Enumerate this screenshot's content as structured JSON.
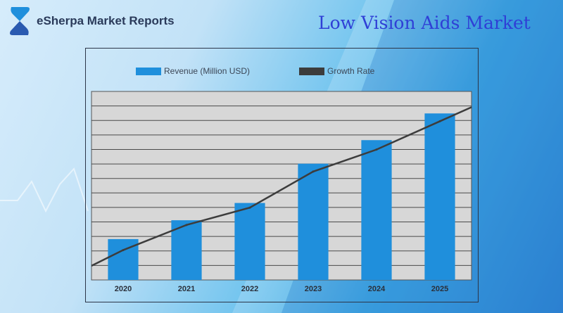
{
  "brand": {
    "name": "eSherpa Market Reports",
    "logo_icon": "esherpa-logo-icon"
  },
  "title": "Low Vision Aids Market",
  "colors": {
    "bar": "#1f8fdc",
    "line": "#3c3c3c",
    "plot_bg": "#d7d7d7",
    "title": "#2f3fd6"
  },
  "chart_data": {
    "type": "bar",
    "categories": [
      "2020",
      "2021",
      "2022",
      "2023",
      "2024",
      "2025"
    ],
    "series": [
      {
        "name": "Revenue (Million USD)",
        "type": "bar",
        "values": [
          2.6,
          3.8,
          4.9,
          7.4,
          8.9,
          10.6
        ]
      },
      {
        "name": "Growth Rate",
        "type": "line",
        "values": [
          1.9,
          3.5,
          4.6,
          6.9,
          8.3,
          10.1
        ]
      }
    ],
    "ylim": [
      0,
      12
    ],
    "grid": true,
    "legend_position": "top"
  }
}
